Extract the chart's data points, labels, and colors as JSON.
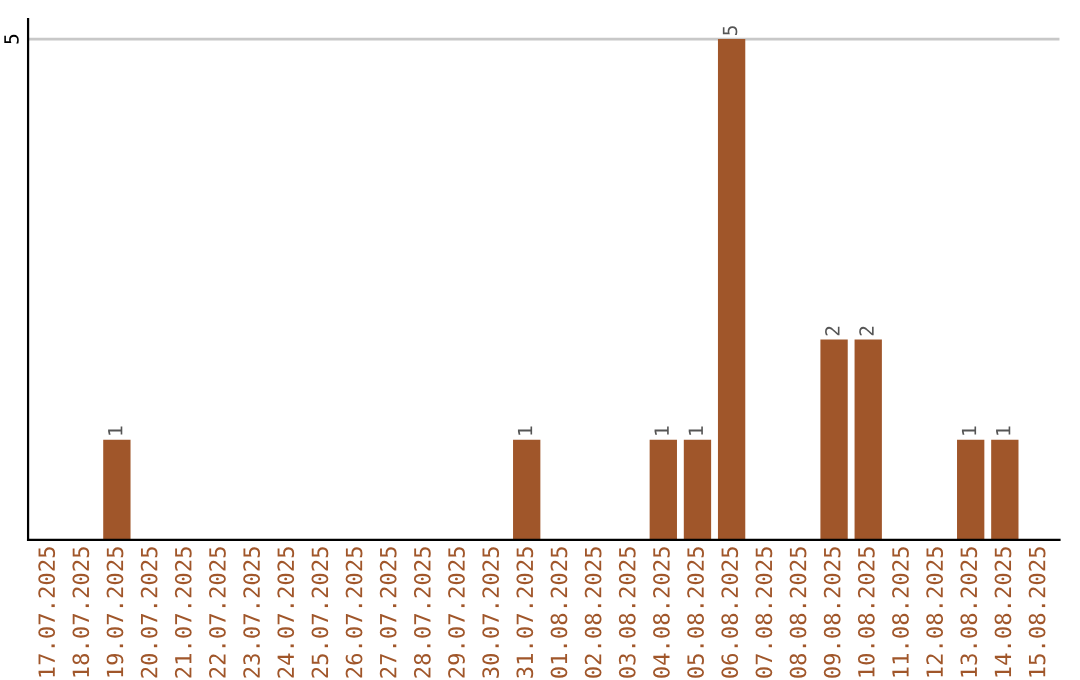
{
  "chart_data": {
    "type": "bar",
    "categories": [
      "17.07.2025",
      "18.07.2025",
      "19.07.2025",
      "20.07.2025",
      "21.07.2025",
      "22.07.2025",
      "23.07.2025",
      "24.07.2025",
      "25.07.2025",
      "26.07.2025",
      "27.07.2025",
      "28.07.2025",
      "29.07.2025",
      "30.07.2025",
      "31.07.2025",
      "01.08.2025",
      "02.08.2025",
      "03.08.2025",
      "04.08.2025",
      "05.08.2025",
      "06.08.2025",
      "07.08.2025",
      "08.08.2025",
      "09.08.2025",
      "10.08.2025",
      "11.08.2025",
      "12.08.2025",
      "13.08.2025",
      "14.08.2025",
      "15.08.2025"
    ],
    "values": [
      0,
      0,
      1,
      0,
      0,
      0,
      0,
      0,
      0,
      0,
      0,
      0,
      0,
      0,
      1,
      0,
      0,
      0,
      1,
      1,
      5,
      0,
      0,
      2,
      2,
      0,
      0,
      1,
      1,
      0
    ],
    "value_labels": [
      null,
      null,
      "1",
      null,
      null,
      null,
      null,
      null,
      null,
      null,
      null,
      null,
      null,
      null,
      "1",
      null,
      null,
      null,
      "1",
      "1",
      "5",
      null,
      null,
      "2",
      "2",
      null,
      null,
      "1",
      "1",
      null
    ],
    "color": "#a0562a",
    "ylim": [
      0,
      5.2
    ],
    "yticks": [
      5
    ],
    "grid": "y"
  }
}
